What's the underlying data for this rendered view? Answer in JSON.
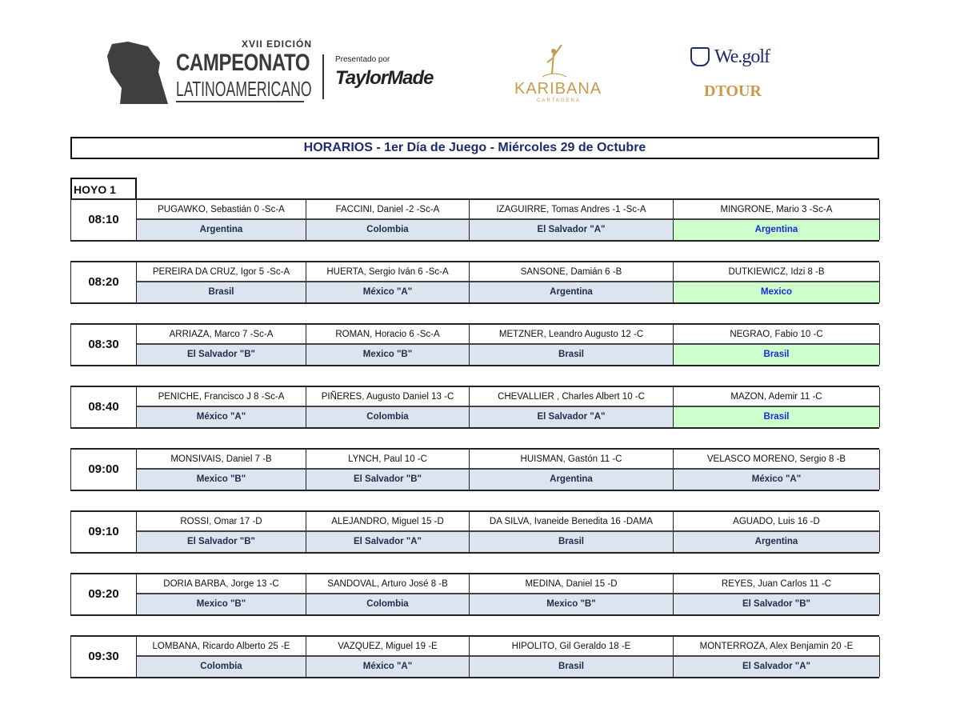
{
  "header": {
    "edition": "XVII EDICIÓN",
    "event_line1": "CAMPEONATO",
    "event_line2": "LATINOAMERICANO",
    "presented_by": "Presentado por",
    "sponsor": "TaylorMade",
    "venue": "KARIBANA",
    "venue_sub": "CARTAGENA",
    "partner1": "We.golf",
    "partner2": "DTOUR"
  },
  "title": "HORARIOS  -  1er  Día de Juego  -  Miércoles 29 de Octubre",
  "hole_label": "HOYO 1",
  "colors": {
    "team_bg": "#dce4f0",
    "highlight_bg": "#ccffcc",
    "highlight_text": "#1a2ad8"
  },
  "groups": [
    {
      "time": "08:10",
      "players": [
        {
          "name": "PUGAWKO, Sebastián 0 -Sc-A",
          "team": "Argentina"
        },
        {
          "name": "FACCINI, Daniel -2 -Sc-A",
          "team": "Colombia"
        },
        {
          "name": "IZAGUIRRE, Tomas Andres -1 -Sc-A",
          "team": "El Salvador \"A\""
        },
        {
          "name": "MINGRONE, Mario 3 -Sc-A",
          "team": "Argentina",
          "highlight": true
        }
      ]
    },
    {
      "time": "08:20",
      "players": [
        {
          "name": "PEREIRA DA CRUZ, Igor 5 -Sc-A",
          "team": "Brasil"
        },
        {
          "name": "HUERTA, Sergio Iván  6 -Sc-A",
          "team": "México \"A\""
        },
        {
          "name": "SANSONE, Damián 6 -B",
          "team": "Argentina"
        },
        {
          "name": "DUTKIEWICZ, Idzi  8 -B",
          "team": "Mexico",
          "highlight": true
        }
      ]
    },
    {
      "time": "08:30",
      "players": [
        {
          "name": "ARRIAZA, Marco  7 -Sc-A",
          "team": "El Salvador \"B\""
        },
        {
          "name": "ROMAN, Horacio 6 -Sc-A",
          "team": "Mexico \"B\""
        },
        {
          "name": "METZNER, Leandro Augusto 12 -C",
          "team": "Brasil"
        },
        {
          "name": "NEGRAO, Fabio 10 -C",
          "team": "Brasil",
          "highlight": true
        }
      ]
    },
    {
      "time": "08:40",
      "players": [
        {
          "name": "PENICHE, Francisco J  8 -Sc-A",
          "team": "México \"A\""
        },
        {
          "name": "PIÑERES, Augusto Daniel 13 -C",
          "team": "Colombia"
        },
        {
          "name": "CHEVALLIER , Charles Albert 10 -C",
          "team": "El Salvador \"A\""
        },
        {
          "name": "MAZON, Ademir 11 -C",
          "team": "Brasil",
          "highlight": true
        }
      ]
    },
    {
      "time": "09:00",
      "players": [
        {
          "name": "MONSIVAIS, Daniel 7 -B",
          "team": "Mexico \"B\""
        },
        {
          "name": "LYNCH, Paul 10 -C",
          "team": "El Salvador \"B\""
        },
        {
          "name": "HUISMAN, Gastón 11 -C",
          "team": "Argentina"
        },
        {
          "name": "VELASCO MORENO, Sergio 8 -B",
          "team": "México \"A\""
        }
      ]
    },
    {
      "time": "09:10",
      "players": [
        {
          "name": "ROSSI, Omar 17 -D",
          "team": "El Salvador \"B\""
        },
        {
          "name": "ALEJANDRO, Miguel  15 -D",
          "team": "El Salvador \"A\""
        },
        {
          "name": "DA SILVA, Ivaneide Benedita 16 -DAMA",
          "team": "Brasil"
        },
        {
          "name": "AGUADO, Luis 16 -D",
          "team": "Argentina"
        }
      ]
    },
    {
      "time": "09:20",
      "players": [
        {
          "name": "DORIA BARBA, Jorge 13 -C",
          "team": "Mexico \"B\""
        },
        {
          "name": "SANDOVAL, Arturo José 8 -B",
          "team": "Colombia"
        },
        {
          "name": "MEDINA, Daniel 15 -D",
          "team": "Mexico \"B\""
        },
        {
          "name": "REYES, Juan Carlos 11 -C",
          "team": "El Salvador \"B\""
        }
      ]
    },
    {
      "time": "09:30",
      "players": [
        {
          "name": "LOMBANA, Ricardo Alberto 25 -E",
          "team": "Colombia"
        },
        {
          "name": "VAZQUEZ, Miguel 19 -E",
          "team": "México \"A\""
        },
        {
          "name": "HIPOLITO, Gil Geraldo 18 -E",
          "team": "Brasil"
        },
        {
          "name": "MONTERROZA, Alex Benjamin 20 -E",
          "team": "El Salvador \"A\""
        }
      ]
    }
  ]
}
